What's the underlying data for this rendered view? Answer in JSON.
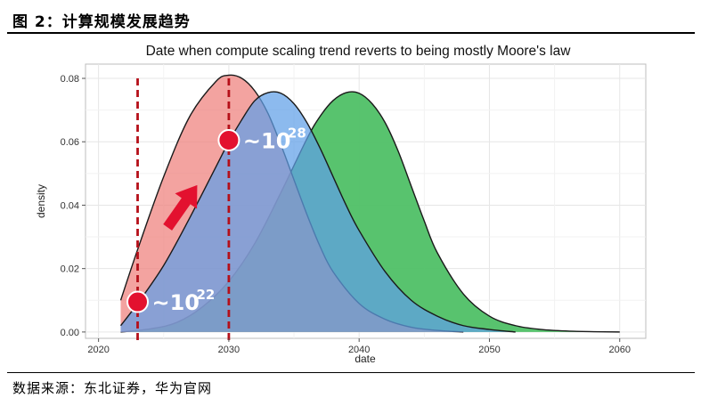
{
  "figure": {
    "title": "图 2：计算规模发展趋势",
    "source": "数据来源：东北证券，华为官网"
  },
  "colors": {
    "series_red": "#ee7f7b",
    "series_blue": "#5f9fe8",
    "series_green": "#4fc066",
    "marker": "#e3112f",
    "dashed": "#b50f19",
    "arrow": "#e3112f"
  },
  "chart_data": {
    "type": "area",
    "title": "Date when compute scaling trend reverts to being mostly Moore's law",
    "xlabel": "date",
    "ylabel": "density",
    "xlim": [
      2019,
      2062
    ],
    "ylim": [
      -0.002,
      0.0845
    ],
    "x_ticks": [
      2020,
      2030,
      2040,
      2050,
      2060
    ],
    "y_ticks": [
      0.0,
      0.02,
      0.04,
      0.06,
      0.08
    ],
    "y_tick_labels": [
      "0.00",
      "0.02",
      "0.04",
      "0.06",
      "0.08"
    ],
    "grid": true,
    "series": [
      {
        "x": [
          2021.7,
          2023,
          2025,
          2027,
          2029,
          2030,
          2031,
          2032,
          2033,
          2034,
          2035,
          2036,
          2037,
          2038,
          2040,
          2042,
          2044,
          2046,
          2048
        ],
        "y": [
          0.01,
          0.026,
          0.049,
          0.068,
          0.079,
          0.081,
          0.08,
          0.076,
          0.069,
          0.059,
          0.048,
          0.037,
          0.027,
          0.019,
          0.009,
          0.004,
          0.0015,
          0.0005,
          0.0
        ]
      },
      {
        "x": [
          2021.7,
          2023,
          2025,
          2027,
          2029,
          2030,
          2031,
          2032,
          2033,
          2034,
          2035,
          2036,
          2037,
          2038,
          2039,
          2040,
          2042,
          2044,
          2046,
          2048,
          2050,
          2052
        ],
        "y": [
          0.002,
          0.009,
          0.021,
          0.036,
          0.052,
          0.06,
          0.067,
          0.073,
          0.0755,
          0.0753,
          0.072,
          0.066,
          0.058,
          0.049,
          0.04,
          0.032,
          0.019,
          0.01,
          0.005,
          0.002,
          0.0008,
          0.0
        ]
      },
      {
        "x": [
          2021.7,
          2024,
          2026,
          2028,
          2030,
          2032,
          2034,
          2036,
          2037,
          2038,
          2039,
          2040,
          2041,
          2042,
          2043,
          2044,
          2045,
          2046,
          2048,
          2050,
          2052,
          2054,
          2056,
          2058,
          2060
        ],
        "y": [
          0.0,
          0.001,
          0.003,
          0.008,
          0.016,
          0.028,
          0.044,
          0.061,
          0.068,
          0.073,
          0.0755,
          0.0753,
          0.072,
          0.066,
          0.057,
          0.046,
          0.035,
          0.025,
          0.012,
          0.005,
          0.002,
          0.0008,
          0.0003,
          0.0001,
          0.0
        ]
      }
    ],
    "annotations": [
      {
        "text": "~10",
        "superscript": "22",
        "x": 2023,
        "y": 0.0095
      },
      {
        "text": "~10",
        "superscript": "28",
        "x": 2030,
        "y": 0.0605
      }
    ],
    "reference_lines_x": [
      2023,
      2030
    ]
  }
}
